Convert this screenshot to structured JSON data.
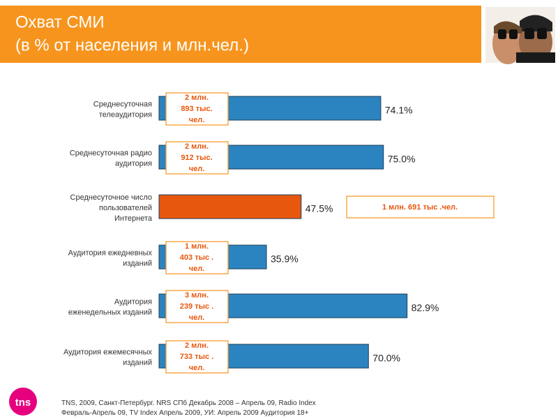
{
  "chart_data": {
    "type": "hbar",
    "title": "Охват СМИ",
    "subtitle": "(в % от населения и млн.чел.)",
    "categories": [
      "Среднесуточная\nтелеаудитория",
      "Среднесуточная радио\nаудитория",
      "Среднесуточное число\nпользователей\nИнтернета",
      "Аудитория ежедневных\nизданий",
      "Аудитория\nеженедельных изданий",
      "Аудитория ежемесячных\nизданий"
    ],
    "values": [
      74.1,
      75.0,
      47.5,
      35.9,
      82.9,
      70.0
    ],
    "value_labels": [
      "74.1%",
      "75.0%",
      "47.5%",
      "35.9%",
      "82.9%",
      "70.0%"
    ],
    "colors": [
      "#2b84bf",
      "#2b84bf",
      "#e8570e",
      "#2b84bf",
      "#2b84bf",
      "#2b84bf"
    ],
    "annotations": [
      "2 млн.\n893 тыс.\nчел.",
      "2 млн.\n912 тыс.\nчел.",
      "1 млн. 691 тыс .чел.",
      "1 млн.\n403 тыс .\nчел.",
      "3 млн.\n239 тыс .\nчел.",
      "2 млн.\n733 тыс .\nчел."
    ],
    "xlim": [
      0,
      100
    ],
    "source": "TNS, 2009,  Санкт-Петербург. NRS СПб Декабрь 2008 – Апрель 09, Radio Index\nФевраль-Апрель 09, TV Index Апрель 2009, УИ: Апрель 2009 Аудитория 18+",
    "logo": "tns"
  }
}
